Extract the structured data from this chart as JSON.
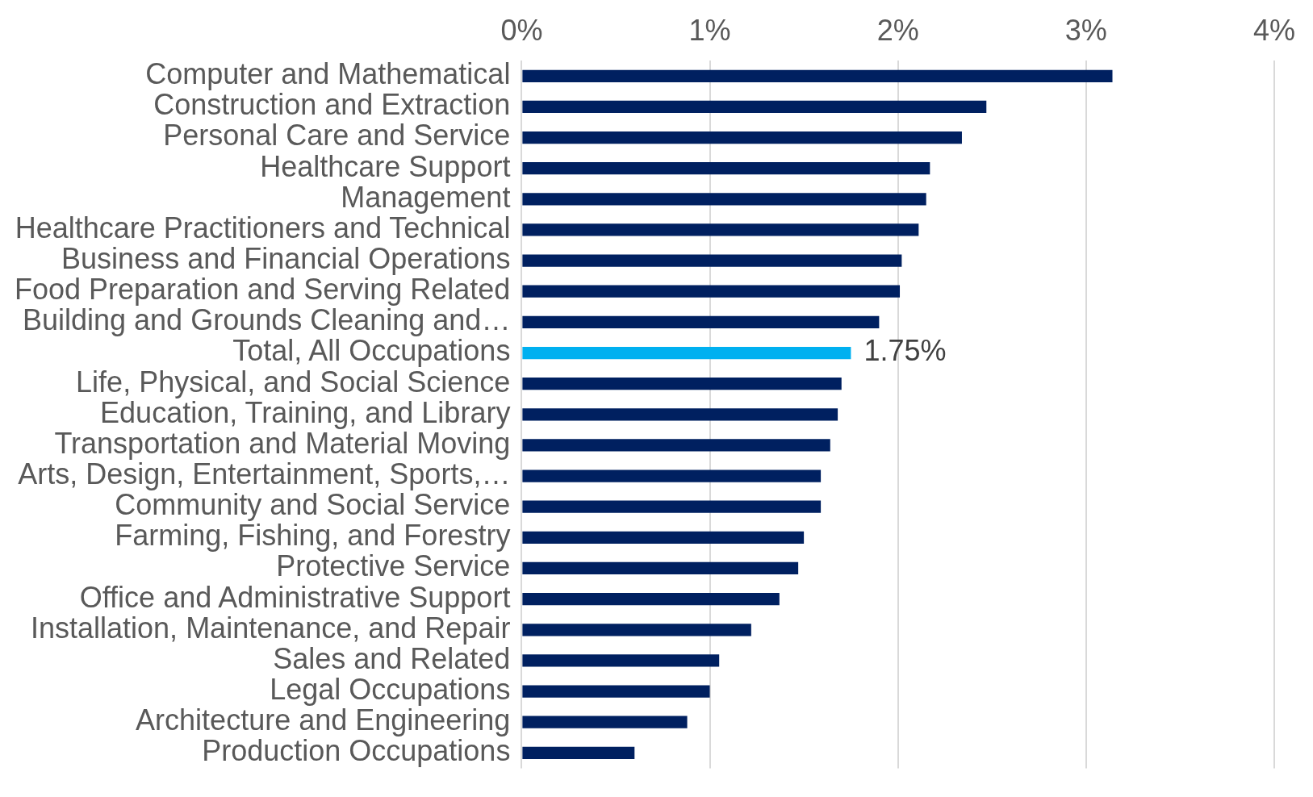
{
  "chart_data": {
    "type": "bar",
    "orientation": "horizontal",
    "categories": [
      "Computer and Mathematical",
      "Construction and Extraction",
      "Personal Care and Service",
      "Healthcare Support",
      "Management",
      "Healthcare Practitioners and Technical",
      "Business and Financial Operations",
      "Food Preparation and Serving Related",
      "Building and Grounds Cleaning and…",
      "Total, All Occupations",
      "Life, Physical, and Social Science",
      "Education, Training, and Library",
      "Transportation and Material Moving",
      "Arts, Design, Entertainment, Sports,…",
      "Community and Social Service",
      "Farming, Fishing, and Forestry",
      "Protective Service",
      "Office and Administrative Support",
      "Installation, Maintenance, and Repair",
      "Sales and Related",
      "Legal Occupations",
      "Architecture and Engineering",
      "Production Occupations"
    ],
    "values": [
      3.14,
      2.47,
      2.34,
      2.17,
      2.15,
      2.11,
      2.02,
      2.01,
      1.9,
      1.75,
      1.7,
      1.68,
      1.64,
      1.59,
      1.59,
      1.5,
      1.47,
      1.37,
      1.22,
      1.05,
      1.0,
      0.88,
      0.6
    ],
    "colors": [
      "#002060",
      "#002060",
      "#002060",
      "#002060",
      "#002060",
      "#002060",
      "#002060",
      "#002060",
      "#002060",
      "#00b0f0",
      "#002060",
      "#002060",
      "#002060",
      "#002060",
      "#002060",
      "#002060",
      "#002060",
      "#002060",
      "#002060",
      "#002060",
      "#002060",
      "#002060",
      "#002060"
    ],
    "value_labels": [
      null,
      null,
      null,
      null,
      null,
      null,
      null,
      null,
      null,
      "1.75%",
      null,
      null,
      null,
      null,
      null,
      null,
      null,
      null,
      null,
      null,
      null,
      null,
      null
    ],
    "xlim": [
      0,
      4
    ],
    "xticks": [
      {
        "value": 0,
        "label": "0%"
      },
      {
        "value": 1,
        "label": "1%"
      },
      {
        "value": 2,
        "label": "2%"
      },
      {
        "value": 3,
        "label": "3%"
      },
      {
        "value": 4,
        "label": "4%"
      }
    ],
    "grid": "x"
  }
}
